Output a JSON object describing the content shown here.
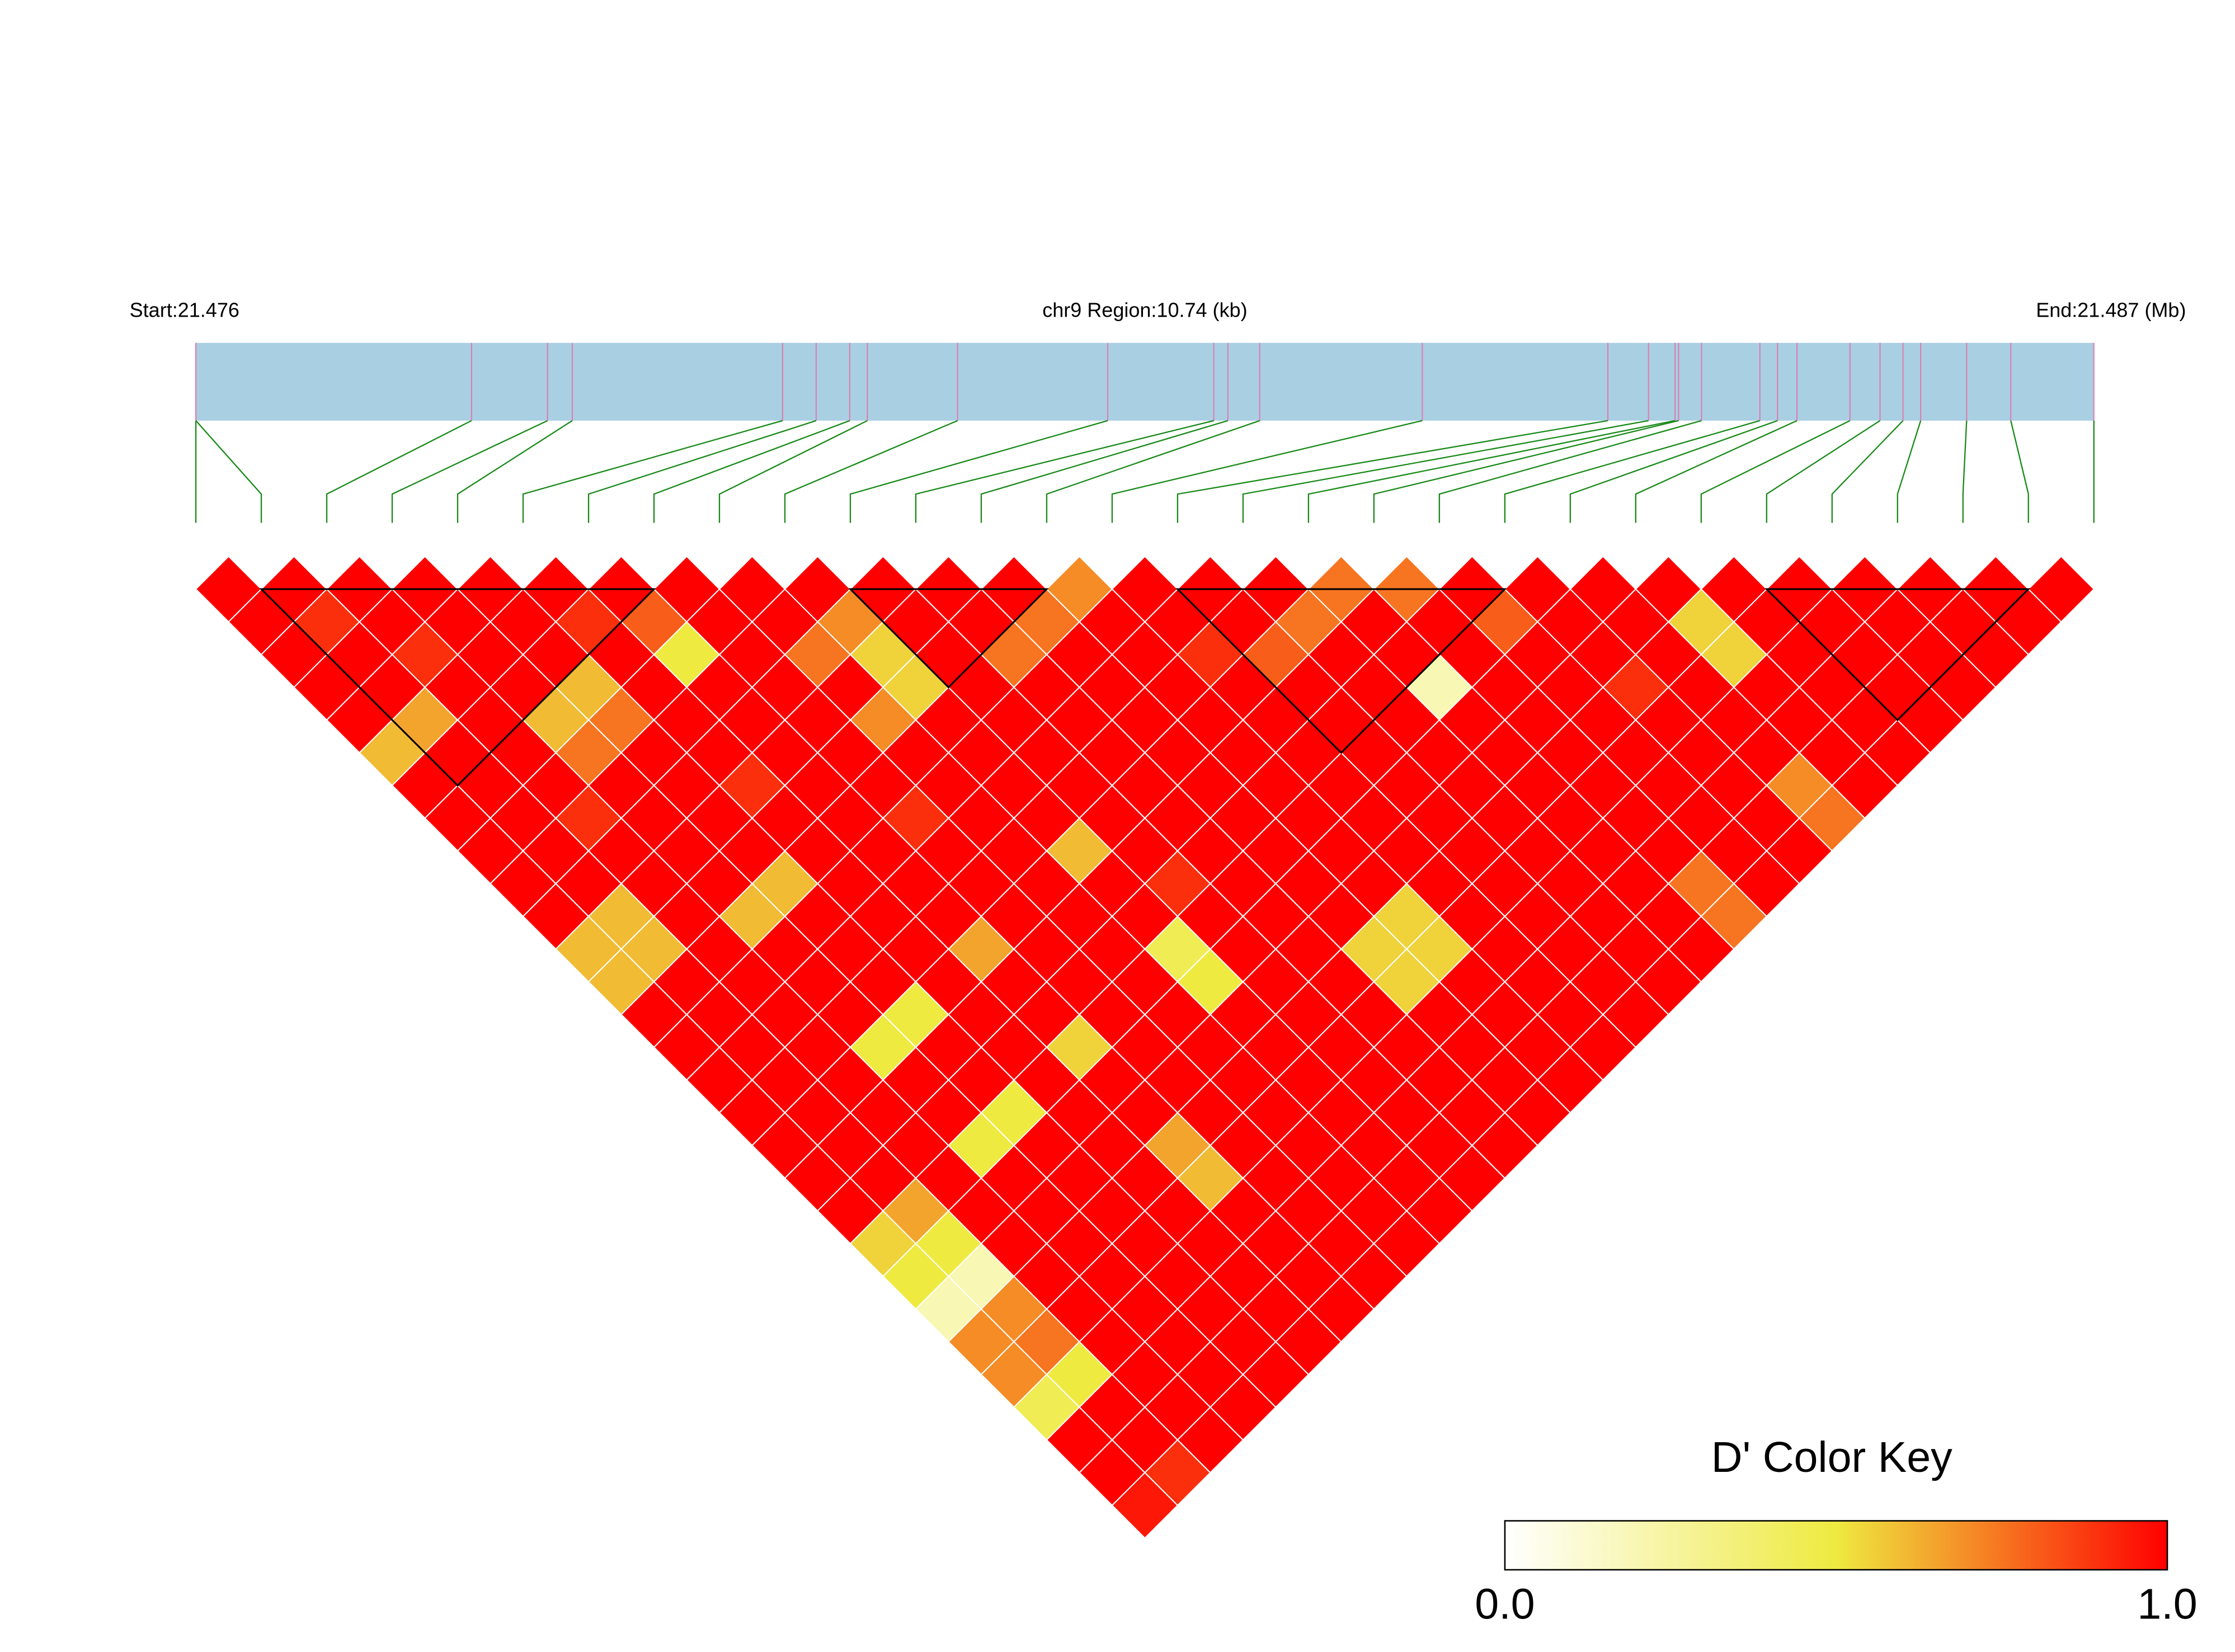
{
  "chart_data": {
    "type": "ld_heatmap",
    "start_label": "Start:21.476",
    "region_label": "chr9 Region:10.74 (kb)",
    "end_label": "End:21.487 (Mb)",
    "xlim": [
      21.476,
      21.48674
    ],
    "snp_positions": [
      21.476,
      21.476,
      21.47756,
      21.47799,
      21.47813,
      21.47932,
      21.47951,
      21.4797,
      21.4798,
      21.48031,
      21.48116,
      21.48176,
      21.48184,
      21.48202,
      21.48294,
      21.48399,
      21.48422,
      21.48437,
      21.48439,
      21.48452,
      21.48485,
      21.48495,
      21.48506,
      21.48536,
      21.48553,
      21.48566,
      21.48576,
      21.48602,
      21.48627,
      21.48674
    ],
    "bar_color": "#a9cfe3",
    "snp_marker_color": "#e07ab0",
    "link_color": "#1a8a1a",
    "dprime": [
      [
        1,
        1,
        1,
        1,
        1,
        0.6,
        1,
        1,
        1,
        1,
        1,
        0.6,
        0.6,
        1,
        1,
        1,
        1,
        1,
        1,
        1,
        0.55,
        0.5,
        0.2,
        0.7,
        0.7,
        0.45,
        1,
        1,
        0.95
      ],
      [
        1,
        0.9,
        1,
        1,
        0.65,
        1,
        1,
        1,
        1,
        1,
        0.6,
        0.6,
        1,
        1,
        1,
        1,
        1,
        1,
        1,
        0.65,
        0.5,
        0.2,
        0.7,
        0.75,
        0.5,
        1,
        1,
        0.9
      ],
      [
        1,
        1,
        0.9,
        1,
        1,
        1,
        1,
        0.9,
        1,
        1,
        1,
        1,
        1,
        1,
        1,
        1,
        1,
        1,
        1,
        1,
        1,
        1,
        1,
        1,
        1,
        1,
        1
      ],
      [
        1,
        1,
        1,
        1,
        0.6,
        0.75,
        1,
        1,
        1,
        1,
        0.6,
        1,
        1,
        1,
        0.5,
        1,
        1,
        0.5,
        1,
        1,
        1,
        1,
        1,
        1,
        1,
        1
      ],
      [
        1,
        1,
        1,
        0.6,
        0.75,
        1,
        1,
        1,
        1,
        0.6,
        1,
        1,
        1,
        0.5,
        1,
        1,
        0.5,
        1,
        1,
        1,
        1,
        1,
        1,
        1,
        1
      ],
      [
        1,
        0.9,
        1,
        1,
        1,
        1,
        0.9,
        1,
        1,
        1,
        1,
        1,
        1,
        1,
        1,
        1,
        1,
        1,
        1,
        1,
        1,
        1,
        1,
        1
      ],
      [
        1,
        0.8,
        0.5,
        1,
        1,
        1,
        1,
        1,
        1,
        1,
        1,
        0.65,
        1,
        1,
        0.55,
        1,
        1,
        0.65,
        0.6,
        1,
        1,
        1,
        1
      ],
      [
        1,
        1,
        1,
        1,
        1,
        1,
        1,
        0.9,
        1,
        1,
        1,
        1,
        1,
        1,
        1,
        1,
        1,
        1,
        1,
        1,
        1,
        1
      ],
      [
        1,
        1,
        0.75,
        1,
        0.7,
        1,
        1,
        1,
        1,
        1,
        1,
        1,
        1,
        1,
        1,
        1,
        1,
        1,
        1,
        1,
        1
      ],
      [
        1,
        0.7,
        0.55,
        0.55,
        1,
        1,
        1,
        1,
        0.6,
        1,
        1,
        0.45,
        0.5,
        1,
        1,
        1,
        1,
        1,
        1,
        1
      ],
      [
        1,
        1,
        1,
        1,
        1,
        1,
        1,
        1,
        1,
        0.9,
        1,
        1,
        1,
        1,
        1,
        1,
        1,
        1,
        1
      ],
      [
        1,
        1,
        0.75,
        1,
        1,
        1,
        1,
        1,
        1,
        1,
        1,
        1,
        1,
        1,
        1,
        1,
        1,
        1
      ],
      [
        1,
        0.75,
        1,
        1,
        1,
        1,
        1,
        1,
        1,
        1,
        1,
        0.55,
        0.55,
        1,
        1,
        1,
        1
      ],
      [
        0.7,
        1,
        1,
        1,
        1,
        1,
        1,
        1,
        1,
        1,
        0.55,
        0.55,
        1,
        1,
        1,
        1
      ],
      [
        1,
        1,
        0.9,
        1,
        1,
        1,
        1,
        1,
        1,
        1,
        1,
        1,
        1,
        1,
        1
      ],
      [
        1,
        1,
        0.8,
        1,
        1,
        1,
        1,
        1,
        1,
        1,
        1,
        1,
        1,
        1
      ],
      [
        1,
        0.75,
        1,
        1,
        1,
        1,
        1,
        1,
        1,
        1,
        1,
        1,
        1
      ],
      [
        0.75,
        1,
        1,
        0.2,
        1,
        1,
        1,
        1,
        1,
        1,
        1,
        1
      ],
      [
        0.75,
        1,
        1,
        1,
        1,
        1,
        1,
        1,
        1,
        0.75,
        0.75
      ],
      [
        1,
        0.8,
        1,
        1,
        1,
        1,
        1,
        1,
        1,
        1
      ],
      [
        1,
        1,
        1,
        0.9,
        1,
        1,
        1,
        1,
        1
      ],
      [
        1,
        1,
        1,
        1,
        1,
        1,
        0.7,
        0.75
      ],
      [
        1,
        0.55,
        0.55,
        1,
        1,
        1,
        1
      ],
      [
        1,
        1,
        1,
        1,
        1,
        1
      ],
      [
        1,
        1,
        1,
        1,
        1
      ],
      [
        1,
        1,
        1,
        1
      ],
      [
        1,
        1,
        1
      ],
      [
        1,
        1
      ],
      [
        1
      ]
    ],
    "blocks": [
      [
        1,
        7
      ],
      [
        10,
        13
      ],
      [
        15,
        20
      ],
      [
        24,
        28
      ]
    ],
    "color_key": {
      "title": "D' Color Key",
      "stops": [
        {
          "value": 0,
          "color": "#ffffff"
        },
        {
          "value": 0.5,
          "color": "#eeea40"
        },
        {
          "value": 1,
          "color": "#ff0000"
        }
      ],
      "ticks": [
        {
          "value": 0,
          "label": "0.0"
        },
        {
          "value": 1,
          "label": "1.0"
        }
      ]
    }
  }
}
